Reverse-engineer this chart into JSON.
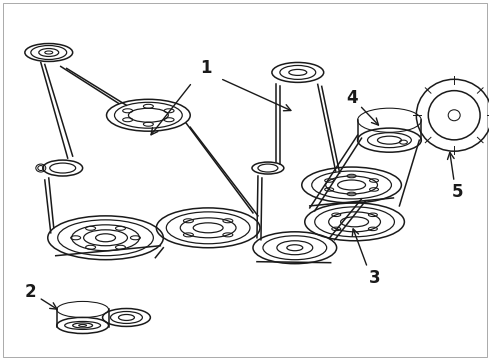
{
  "background_color": "#ffffff",
  "line_color": "#1a1a1a",
  "label_color": "#000000",
  "fig_width": 4.9,
  "fig_height": 3.6,
  "dpi": 100
}
